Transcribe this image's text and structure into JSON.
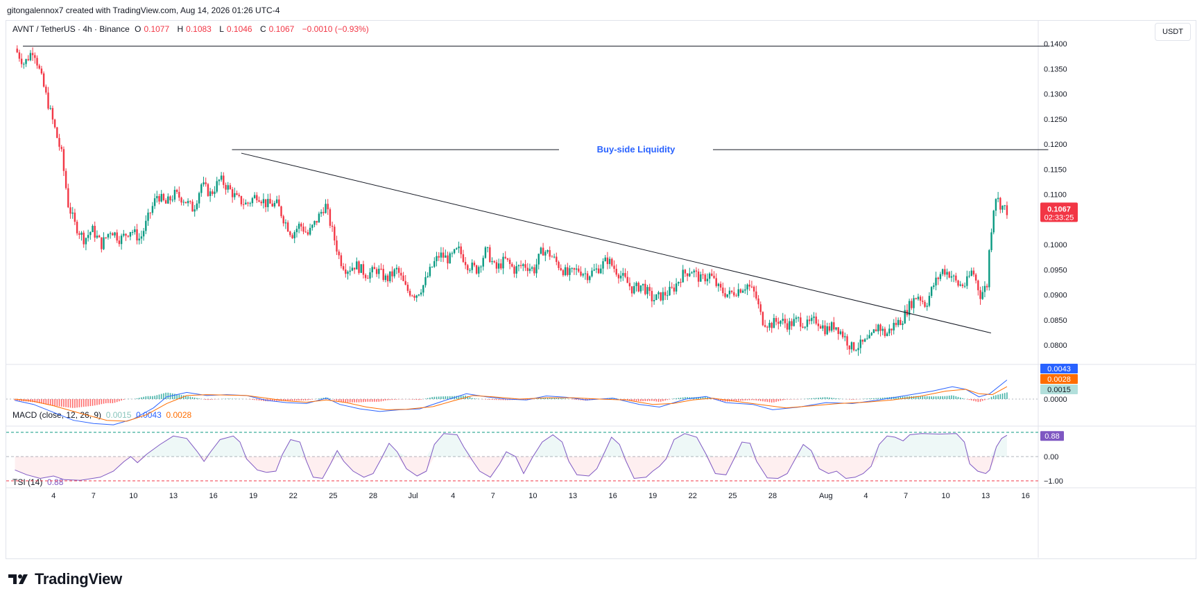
{
  "attribution": "gitongalennox7 created with TradingView.com, Aug 14, 2026 01:26 UTC-4",
  "symbol": {
    "title": "AVNT / TetherUS · 4h · Binance",
    "o_label": "O",
    "o": "0.1077",
    "h_label": "H",
    "h": "0.1083",
    "l_label": "L",
    "l": "0.1046",
    "c_label": "C",
    "c": "0.1067",
    "change": "−0.0010 (−0.93%)"
  },
  "currency_button": "USDT",
  "price_tag": {
    "price": "0.1067",
    "countdown": "02:33:25"
  },
  "macd_legend": {
    "title": "MACD (close, 12, 26, 9)",
    "hist": "0.0015",
    "macd": "0.0043",
    "signal": "0.0028"
  },
  "tsi_legend": {
    "title": "TSI (14)",
    "value": "0.88"
  },
  "brand": "TradingView",
  "colors": {
    "up": "#089981",
    "down": "#f23645",
    "macd": "#2962ff",
    "signal": "#ff6d00",
    "tsi": "#7e57c2",
    "annotation": "#2962ff"
  },
  "chart_data": {
    "type": "candlestick",
    "price_axis_labels": [
      "0.1400",
      "0.1350",
      "0.1300",
      "0.1250",
      "0.1200",
      "0.1150",
      "0.1100",
      "0.1000",
      "0.0950",
      "0.0900",
      "0.0850",
      "0.0800"
    ],
    "price_range": [
      0.0775,
      0.1435
    ],
    "x_axis_labels": [
      {
        "t": 1,
        "label": "4"
      },
      {
        "t": 4,
        "label": "7"
      },
      {
        "t": 7,
        "label": "10"
      },
      {
        "t": 10,
        "label": "13"
      },
      {
        "t": 13,
        "label": "16"
      },
      {
        "t": 16,
        "label": "19"
      },
      {
        "t": 19,
        "label": "22"
      },
      {
        "t": 22,
        "label": "25"
      },
      {
        "t": 25,
        "label": "28"
      },
      {
        "t": 28,
        "label": "Jul"
      },
      {
        "t": 31,
        "label": "4"
      },
      {
        "t": 34,
        "label": "7"
      },
      {
        "t": 37,
        "label": "10"
      },
      {
        "t": 40,
        "label": "13"
      },
      {
        "t": 43,
        "label": "16"
      },
      {
        "t": 46,
        "label": "19"
      },
      {
        "t": 49,
        "label": "22"
      },
      {
        "t": 52,
        "label": "25"
      },
      {
        "t": 55,
        "label": "28"
      },
      {
        "t": 59,
        "label": "Aug"
      },
      {
        "t": 62,
        "label": "4"
      },
      {
        "t": 65,
        "label": "7"
      },
      {
        "t": 68,
        "label": "10"
      },
      {
        "t": 71,
        "label": "13"
      },
      {
        "t": 74,
        "label": "16"
      }
    ],
    "close_path": [
      [
        -1.9,
        0.139
      ],
      [
        -1.2,
        0.136
      ],
      [
        -0.5,
        0.139
      ],
      [
        0.3,
        0.131
      ],
      [
        0.9,
        0.125
      ],
      [
        1.6,
        0.118
      ],
      [
        2.1,
        0.108
      ],
      [
        2.6,
        0.104
      ],
      [
        3.3,
        0.101
      ],
      [
        3.9,
        0.103
      ],
      [
        4.6,
        0.1
      ],
      [
        5.3,
        0.103
      ],
      [
        6.0,
        0.101
      ],
      [
        6.8,
        0.103
      ],
      [
        7.5,
        0.101
      ],
      [
        8.2,
        0.106
      ],
      [
        8.8,
        0.11
      ],
      [
        9.4,
        0.108
      ],
      [
        10.1,
        0.11
      ],
      [
        10.8,
        0.109
      ],
      [
        11.5,
        0.107
      ],
      [
        12.1,
        0.112
      ],
      [
        12.8,
        0.11
      ],
      [
        13.5,
        0.113
      ],
      [
        14.2,
        0.111
      ],
      [
        14.8,
        0.109
      ],
      [
        15.5,
        0.108
      ],
      [
        16.3,
        0.11
      ],
      [
        17.0,
        0.108
      ],
      [
        17.8,
        0.108
      ],
      [
        18.3,
        0.105
      ],
      [
        18.9,
        0.102
      ],
      [
        19.5,
        0.104
      ],
      [
        20.1,
        0.102
      ],
      [
        20.8,
        0.105
      ],
      [
        21.4,
        0.108
      ],
      [
        21.9,
        0.103
      ],
      [
        22.5,
        0.097
      ],
      [
        23.0,
        0.095
      ],
      [
        23.7,
        0.096
      ],
      [
        24.5,
        0.094
      ],
      [
        25.3,
        0.095
      ],
      [
        26.0,
        0.093
      ],
      [
        26.8,
        0.095
      ],
      [
        27.5,
        0.091
      ],
      [
        28.2,
        0.09
      ],
      [
        28.8,
        0.092
      ],
      [
        29.5,
        0.096
      ],
      [
        30.0,
        0.098
      ],
      [
        30.7,
        0.097
      ],
      [
        31.4,
        0.099
      ],
      [
        32.1,
        0.096
      ],
      [
        32.8,
        0.095
      ],
      [
        33.5,
        0.099
      ],
      [
        34.2,
        0.095
      ],
      [
        34.9,
        0.097
      ],
      [
        35.6,
        0.095
      ],
      [
        36.3,
        0.096
      ],
      [
        37.1,
        0.095
      ],
      [
        37.7,
        0.099
      ],
      [
        38.3,
        0.098
      ],
      [
        38.9,
        0.096
      ],
      [
        39.6,
        0.094
      ],
      [
        40.4,
        0.095
      ],
      [
        41.1,
        0.094
      ],
      [
        41.8,
        0.095
      ],
      [
        42.6,
        0.097
      ],
      [
        43.2,
        0.095
      ],
      [
        43.9,
        0.093
      ],
      [
        44.5,
        0.091
      ],
      [
        45.2,
        0.092
      ],
      [
        46.0,
        0.089
      ],
      [
        46.8,
        0.09
      ],
      [
        47.5,
        0.091
      ],
      [
        48.2,
        0.094
      ],
      [
        48.9,
        0.095
      ],
      [
        49.6,
        0.093
      ],
      [
        50.3,
        0.094
      ],
      [
        51.0,
        0.091
      ],
      [
        51.7,
        0.09
      ],
      [
        52.4,
        0.091
      ],
      [
        53.1,
        0.092
      ],
      [
        53.7,
        0.09
      ],
      [
        54.2,
        0.085
      ],
      [
        54.8,
        0.084
      ],
      [
        55.5,
        0.085
      ],
      [
        56.2,
        0.084
      ],
      [
        56.9,
        0.085
      ],
      [
        57.6,
        0.084
      ],
      [
        58.3,
        0.085
      ],
      [
        59.0,
        0.083
      ],
      [
        59.7,
        0.084
      ],
      [
        60.3,
        0.082
      ],
      [
        60.9,
        0.0795
      ],
      [
        61.6,
        0.08
      ],
      [
        62.3,
        0.081
      ],
      [
        62.9,
        0.084
      ],
      [
        63.5,
        0.082
      ],
      [
        64.1,
        0.084
      ],
      [
        64.7,
        0.085
      ],
      [
        65.3,
        0.088
      ],
      [
        65.9,
        0.09
      ],
      [
        66.5,
        0.088
      ],
      [
        67.1,
        0.092
      ],
      [
        67.8,
        0.095
      ],
      [
        68.4,
        0.094
      ],
      [
        68.9,
        0.092
      ],
      [
        69.5,
        0.092
      ],
      [
        70.0,
        0.095
      ],
      [
        70.6,
        0.09
      ],
      [
        71.1,
        0.092
      ],
      [
        71.3,
        0.1
      ],
      [
        71.7,
        0.11
      ],
      [
        72.1,
        0.108
      ],
      [
        72.6,
        0.1067
      ]
    ],
    "drawings": {
      "top_level": {
        "price": 0.1395,
        "from_t": -1.3,
        "to_t": 75.8
      },
      "buy_side_liquidity": {
        "label": "Buy-side Liquidity",
        "price": 0.1189,
        "from_t": 14.4,
        "to_t": 75.7
      },
      "trendline": {
        "from": [
          15.1,
          0.1182
        ],
        "to": [
          71.4,
          0.0824
        ]
      }
    },
    "macd": {
      "legend": "MACD (close, 12, 26, 9)",
      "axis_labels": [
        "0.0000"
      ],
      "range": [
        -0.0053,
        0.0053
      ],
      "macd_path": [
        [
          -1.9,
          -0.0003
        ],
        [
          -0.5,
          -0.0012
        ],
        [
          1.0,
          -0.003
        ],
        [
          2.5,
          -0.0048
        ],
        [
          4.0,
          -0.0055
        ],
        [
          5.5,
          -0.0058
        ],
        [
          7.0,
          -0.0045
        ],
        [
          8.5,
          -0.002
        ],
        [
          9.5,
          0.0005
        ],
        [
          11.0,
          0.0015
        ],
        [
          12.5,
          0.0008
        ],
        [
          14.0,
          0.001
        ],
        [
          15.5,
          0.0008
        ],
        [
          17.0,
          -0.0003
        ],
        [
          18.5,
          -0.0008
        ],
        [
          20.0,
          -0.001
        ],
        [
          21.5,
          0.0002
        ],
        [
          22.5,
          -0.0012
        ],
        [
          24.0,
          -0.0022
        ],
        [
          25.5,
          -0.0028
        ],
        [
          27.0,
          -0.0024
        ],
        [
          28.5,
          -0.0022
        ],
        [
          30.5,
          -0.0002
        ],
        [
          32.0,
          0.0012
        ],
        [
          33.5,
          0.0005
        ],
        [
          35.0,
          0.0
        ],
        [
          36.5,
          -0.0002
        ],
        [
          38.0,
          0.0007
        ],
        [
          39.5,
          0.0004
        ],
        [
          41.0,
          -0.0002
        ],
        [
          43.0,
          0.0002
        ],
        [
          45.0,
          -0.0012
        ],
        [
          46.5,
          -0.0018
        ],
        [
          48.5,
          0.0
        ],
        [
          50.0,
          0.0006
        ],
        [
          51.5,
          -0.0008
        ],
        [
          53.5,
          -0.0012
        ],
        [
          55.0,
          -0.0024
        ],
        [
          57.0,
          -0.0018
        ],
        [
          59.0,
          -0.0008
        ],
        [
          61.0,
          -0.001
        ],
        [
          63.0,
          -0.0002
        ],
        [
          65.0,
          0.0008
        ],
        [
          67.0,
          0.0018
        ],
        [
          68.5,
          0.0028
        ],
        [
          69.5,
          0.0022
        ],
        [
          70.5,
          0.0005
        ],
        [
          71.3,
          0.0012
        ],
        [
          72.6,
          0.0043
        ]
      ],
      "signal_path": [
        [
          -1.9,
          0.0
        ],
        [
          -0.5,
          -0.0005
        ],
        [
          1.0,
          -0.0015
        ],
        [
          3.0,
          -0.0032
        ],
        [
          5.0,
          -0.0048
        ],
        [
          6.5,
          -0.005
        ],
        [
          8.0,
          -0.0035
        ],
        [
          9.5,
          -0.001
        ],
        [
          11.0,
          0.0008
        ],
        [
          12.5,
          0.001
        ],
        [
          14.0,
          0.0009
        ],
        [
          15.5,
          0.0008
        ],
        [
          17.0,
          0.0002
        ],
        [
          18.5,
          -0.0004
        ],
        [
          20.0,
          -0.0007
        ],
        [
          21.5,
          -0.0002
        ],
        [
          23.0,
          -0.0008
        ],
        [
          24.5,
          -0.0018
        ],
        [
          26.0,
          -0.0024
        ],
        [
          27.5,
          -0.0023
        ],
        [
          29.5,
          -0.0017
        ],
        [
          31.0,
          -0.0004
        ],
        [
          32.5,
          0.0008
        ],
        [
          34.0,
          0.0005
        ],
        [
          36.0,
          0.0
        ],
        [
          38.0,
          0.0003
        ],
        [
          40.0,
          0.0003
        ],
        [
          42.0,
          0.0
        ],
        [
          44.0,
          -0.0002
        ],
        [
          46.0,
          -0.0012
        ],
        [
          47.5,
          -0.001
        ],
        [
          49.0,
          -0.0002
        ],
        [
          50.5,
          0.0002
        ],
        [
          52.0,
          -0.0004
        ],
        [
          54.0,
          -0.0012
        ],
        [
          56.0,
          -0.002
        ],
        [
          58.0,
          -0.0015
        ],
        [
          60.0,
          -0.001
        ],
        [
          62.0,
          -0.0007
        ],
        [
          64.0,
          -0.0002
        ],
        [
          66.0,
          0.0006
        ],
        [
          68.0,
          0.0018
        ],
        [
          69.5,
          0.0022
        ],
        [
          70.5,
          0.0012
        ],
        [
          71.5,
          0.001
        ],
        [
          72.6,
          0.0028
        ]
      ],
      "hist_endpoints": {
        "t": 72.6,
        "value": 0.0015
      }
    },
    "tsi": {
      "legend": "TSI (14)",
      "axis_labels": [
        "0.00",
        "−1.00"
      ],
      "range": [
        -1.08,
        1.08
      ],
      "value_path": [
        [
          -1.9,
          -0.55
        ],
        [
          -1.0,
          -0.75
        ],
        [
          0.0,
          -0.9
        ],
        [
          1.0,
          -0.8
        ],
        [
          1.8,
          -0.95
        ],
        [
          3.0,
          -0.98
        ],
        [
          4.5,
          -0.85
        ],
        [
          5.5,
          -0.6
        ],
        [
          6.3,
          -0.2
        ],
        [
          6.8,
          0.0
        ],
        [
          7.3,
          -0.25
        ],
        [
          8.0,
          0.1
        ],
        [
          9.0,
          0.5
        ],
        [
          10.0,
          0.85
        ],
        [
          11.0,
          0.75
        ],
        [
          11.8,
          0.2
        ],
        [
          12.3,
          -0.2
        ],
        [
          12.8,
          0.2
        ],
        [
          13.5,
          0.7
        ],
        [
          14.5,
          0.85
        ],
        [
          15.0,
          0.6
        ],
        [
          15.5,
          -0.1
        ],
        [
          16.3,
          -0.55
        ],
        [
          17.0,
          -0.65
        ],
        [
          17.7,
          -0.6
        ],
        [
          18.2,
          0.1
        ],
        [
          18.8,
          0.7
        ],
        [
          19.5,
          0.6
        ],
        [
          20.0,
          -0.2
        ],
        [
          20.5,
          -0.85
        ],
        [
          21.2,
          -0.9
        ],
        [
          21.8,
          -0.3
        ],
        [
          22.3,
          0.25
        ],
        [
          22.8,
          -0.2
        ],
        [
          23.5,
          -0.6
        ],
        [
          24.3,
          -0.85
        ],
        [
          25.0,
          -0.7
        ],
        [
          25.6,
          -0.1
        ],
        [
          26.2,
          0.55
        ],
        [
          26.8,
          0.2
        ],
        [
          27.5,
          -0.5
        ],
        [
          28.3,
          -0.8
        ],
        [
          29.0,
          -0.6
        ],
        [
          29.6,
          0.5
        ],
        [
          30.3,
          0.95
        ],
        [
          31.3,
          0.9
        ],
        [
          31.8,
          0.4
        ],
        [
          32.5,
          -0.2
        ],
        [
          33.0,
          -0.6
        ],
        [
          33.8,
          -0.85
        ],
        [
          34.5,
          -0.3
        ],
        [
          35.0,
          0.2
        ],
        [
          35.7,
          0.0
        ],
        [
          36.3,
          -0.7
        ],
        [
          37.0,
          0.0
        ],
        [
          37.7,
          0.6
        ],
        [
          38.5,
          0.9
        ],
        [
          39.2,
          0.6
        ],
        [
          39.7,
          -0.2
        ],
        [
          40.3,
          -0.75
        ],
        [
          41.2,
          -0.8
        ],
        [
          41.8,
          -0.5
        ],
        [
          42.4,
          0.2
        ],
        [
          42.9,
          0.8
        ],
        [
          43.5,
          0.5
        ],
        [
          44.0,
          -0.2
        ],
        [
          44.6,
          -0.9
        ],
        [
          45.5,
          -0.85
        ],
        [
          46.0,
          -0.6
        ],
        [
          46.5,
          -0.4
        ],
        [
          47.0,
          -0.1
        ],
        [
          47.6,
          0.7
        ],
        [
          48.4,
          0.95
        ],
        [
          49.3,
          0.8
        ],
        [
          50.0,
          0.1
        ],
        [
          50.7,
          -0.7
        ],
        [
          51.5,
          -0.75
        ],
        [
          52.1,
          -0.1
        ],
        [
          52.7,
          0.6
        ],
        [
          53.3,
          0.55
        ],
        [
          53.8,
          -0.2
        ],
        [
          54.6,
          -0.88
        ],
        [
          55.4,
          -0.9
        ],
        [
          56.1,
          -0.7
        ],
        [
          56.7,
          -0.1
        ],
        [
          57.3,
          0.5
        ],
        [
          57.9,
          0.25
        ],
        [
          58.5,
          -0.5
        ],
        [
          59.2,
          -0.7
        ],
        [
          59.8,
          -0.6
        ],
        [
          60.5,
          -0.9
        ],
        [
          61.2,
          -0.85
        ],
        [
          61.8,
          -0.7
        ],
        [
          62.4,
          -0.4
        ],
        [
          63.0,
          0.5
        ],
        [
          63.6,
          0.85
        ],
        [
          64.2,
          0.8
        ],
        [
          64.8,
          0.65
        ],
        [
          65.3,
          0.9
        ],
        [
          66.2,
          0.95
        ],
        [
          67.5,
          0.93
        ],
        [
          68.8,
          0.95
        ],
        [
          69.4,
          0.6
        ],
        [
          69.8,
          -0.3
        ],
        [
          70.4,
          -0.6
        ],
        [
          71.0,
          -0.7
        ],
        [
          71.3,
          -0.55
        ],
        [
          71.8,
          0.4
        ],
        [
          72.2,
          0.75
        ],
        [
          72.6,
          0.88
        ]
      ]
    }
  }
}
